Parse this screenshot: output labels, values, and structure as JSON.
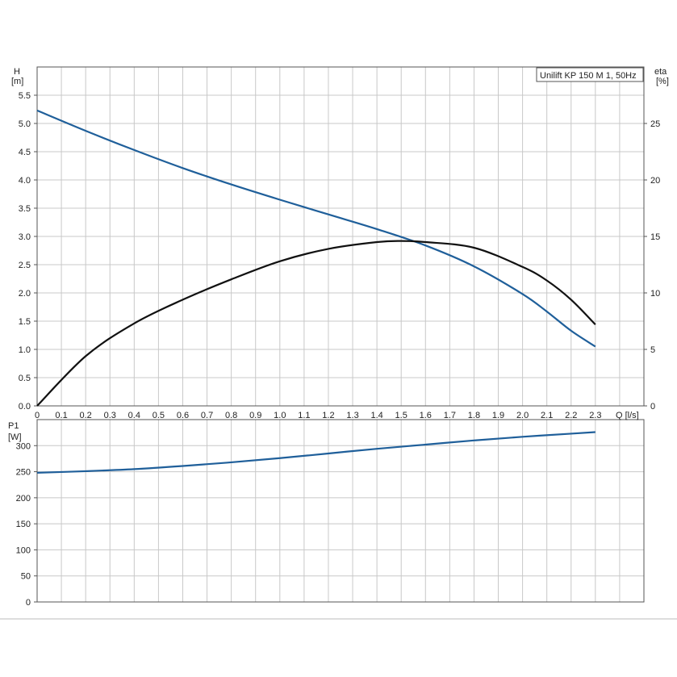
{
  "chart_data": [
    {
      "type": "line",
      "panel": "head",
      "title": "Unilift KP 150 M 1, 50Hz",
      "xlabel": "Q [l/s]",
      "xlabel_name": "Q",
      "xlabel_unit": "[l/s]",
      "ylabel_name": "H",
      "ylabel_unit": "[m]",
      "y2label_name": "eta",
      "y2label_unit": "[%]",
      "xlim": [
        0,
        2.5
      ],
      "ylim": [
        0,
        6.0
      ],
      "y2lim": [
        0,
        30
      ],
      "grid": true,
      "x_ticks": [
        "0",
        "0.1",
        "0.2",
        "0.3",
        "0.4",
        "0.5",
        "0.6",
        "0.7",
        "0.8",
        "0.9",
        "1.0",
        "1.1",
        "1.2",
        "1.3",
        "1.4",
        "1.5",
        "1.6",
        "1.7",
        "1.8",
        "1.9",
        "2.0",
        "2.1",
        "2.2",
        "2.3"
      ],
      "y_ticks": [
        "0.0",
        "0.5",
        "1.0",
        "1.5",
        "2.0",
        "2.5",
        "3.0",
        "3.5",
        "4.0",
        "4.5",
        "5.0",
        "5.5"
      ],
      "y2_ticks": [
        "0",
        "5",
        "10",
        "15",
        "20",
        "25"
      ],
      "series": [
        {
          "axis": "left",
          "color": "#1f5f9a",
          "x": [
            0,
            0.2,
            0.4,
            0.6,
            0.8,
            1.0,
            1.2,
            1.4,
            1.6,
            1.8,
            2.0,
            2.1,
            2.2,
            2.3
          ],
          "y": [
            5.23,
            4.87,
            4.53,
            4.21,
            3.92,
            3.65,
            3.39,
            3.13,
            2.84,
            2.47,
            1.98,
            1.67,
            1.33,
            1.05
          ]
        },
        {
          "axis": "right",
          "color": "#111111",
          "x": [
            0,
            0.2,
            0.4,
            0.6,
            0.8,
            1.0,
            1.2,
            1.4,
            1.5,
            1.6,
            1.8,
            2.0,
            2.1,
            2.2,
            2.3
          ],
          "y": [
            0,
            4.4,
            7.3,
            9.4,
            11.2,
            12.8,
            13.9,
            14.5,
            14.6,
            14.5,
            14.0,
            12.3,
            11.1,
            9.4,
            7.2
          ]
        }
      ]
    },
    {
      "type": "line",
      "panel": "power",
      "ylabel_name": "P1",
      "ylabel_unit": "[W]",
      "xlim": [
        0,
        2.5
      ],
      "ylim": [
        0,
        350
      ],
      "grid": true,
      "y_ticks": [
        "0",
        "50",
        "100",
        "150",
        "200",
        "250",
        "300"
      ],
      "series": [
        {
          "axis": "left",
          "color": "#1f5f9a",
          "x": [
            0,
            0.2,
            0.4,
            0.6,
            0.8,
            1.0,
            1.2,
            1.4,
            1.6,
            1.8,
            2.0,
            2.2,
            2.3
          ],
          "y": [
            248,
            251,
            255,
            261,
            268,
            276,
            285,
            294,
            302,
            310,
            317,
            323,
            326
          ]
        }
      ]
    }
  ]
}
